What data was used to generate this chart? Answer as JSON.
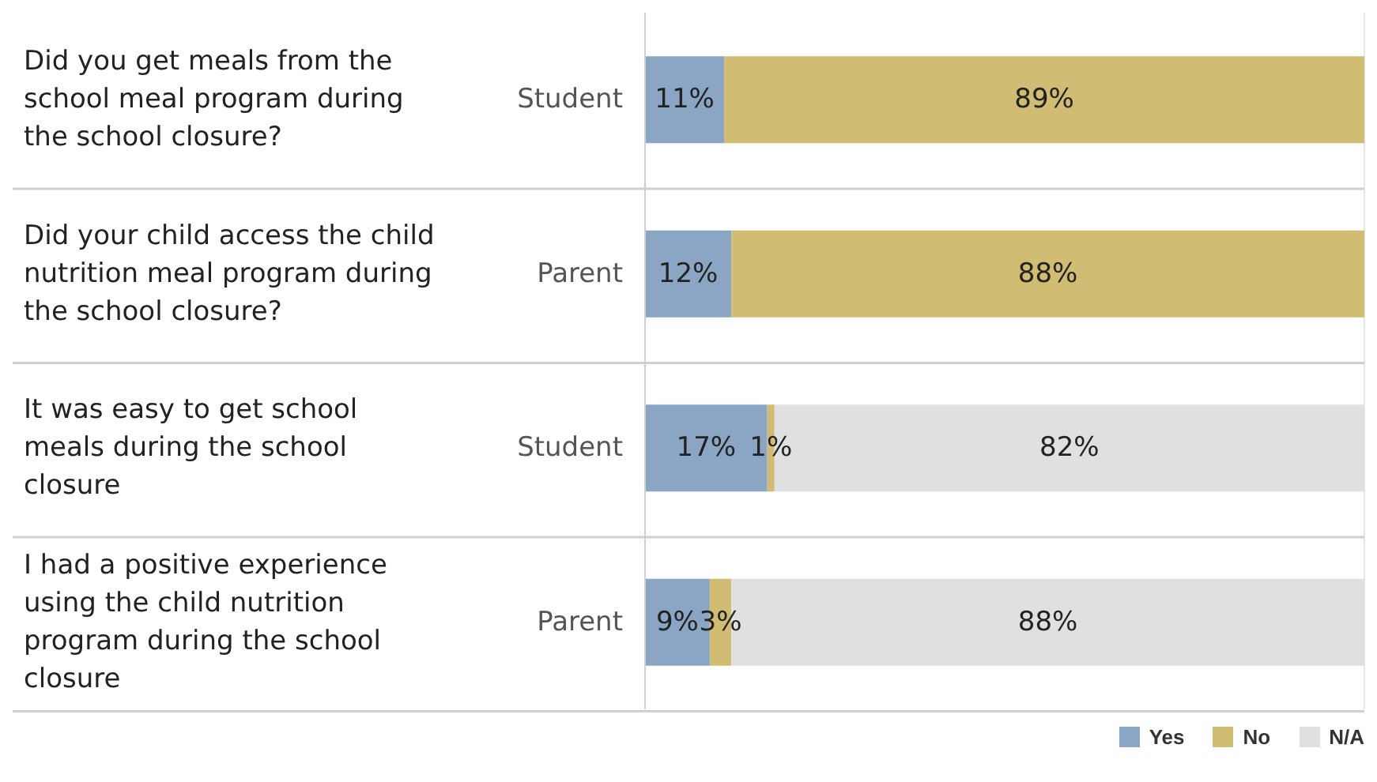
{
  "chart_data": {
    "type": "bar",
    "orientation": "horizontal",
    "stacked": true,
    "categories": [
      "Did you get meals from the school meal program during the school closure?",
      "Did your child access the child nutrition meal program during the school closure?",
      "It was easy to get school meals during the school closure",
      "I had a positive experience using the child nutrition program during the school closure"
    ],
    "y2_categories": [
      "Student",
      "Parent",
      "Student",
      "Parent"
    ],
    "series": [
      {
        "name": "Yes",
        "color": "#8aa6c4",
        "values": [
          11,
          12,
          17,
          9
        ],
        "value_labels": [
          "11%",
          "12%",
          "17%",
          "9%"
        ]
      },
      {
        "name": "No",
        "color": "#d1bc73",
        "values": [
          89,
          88,
          1,
          3
        ],
        "value_labels": [
          "89%",
          "88%",
          "1%",
          "3%"
        ]
      },
      {
        "name": "N/A",
        "color": "#e0e0e0",
        "values": [
          null,
          null,
          82,
          88
        ],
        "value_labels": [
          null,
          null,
          "82%",
          "88%"
        ]
      }
    ],
    "xlim": [
      0,
      100
    ],
    "tick_labels": "y",
    "grid": "x",
    "legend": "bottom right"
  }
}
